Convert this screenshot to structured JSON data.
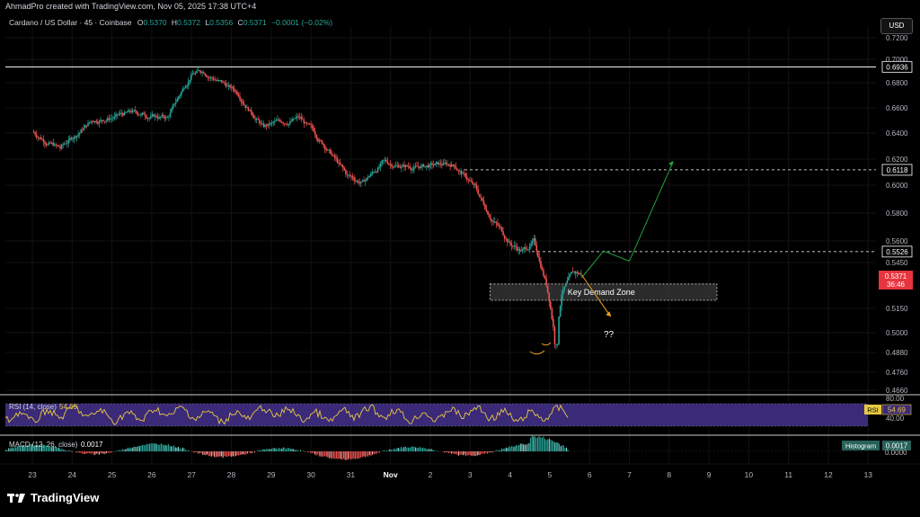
{
  "header": {
    "created_by": "AhmadPro created with TradingView.com, Nov 05, 2025 17:38 UTC+4"
  },
  "legend": {
    "symbol": "Cardano / US Dollar · 45 · Coinbase",
    "O_label": "O",
    "O": "0.5370",
    "H_label": "H",
    "H": "0.5372",
    "L_label": "L",
    "L": "0.5356",
    "C_label": "C",
    "C": "0.5371",
    "change": "−0.0001 (−0.02%)"
  },
  "currency_button": "USD",
  "price_axis": {
    "ticks": [
      "0.7200",
      "0.7000",
      "0.6800",
      "0.6600",
      "0.6400",
      "0.6200",
      "0.6000",
      "0.5800",
      "0.5600",
      "0.5450",
      "0.5150",
      "0.5000",
      "0.4880",
      "0.4760",
      "0.4660"
    ],
    "tags": [
      {
        "value": "0.6936",
        "color": "#ffffff"
      },
      {
        "value": "0.6118",
        "color": "#ffffff"
      },
      {
        "value": "0.5526",
        "color": "#ffffff"
      }
    ],
    "current_price": "0.5371",
    "countdown": "36:46"
  },
  "annotations": {
    "zone_label": "Key Demand Zone",
    "question": "??"
  },
  "rsi": {
    "label": "RSI (14, close)",
    "value": "54.69",
    "levels": [
      "80.00",
      "40.00"
    ]
  },
  "macd": {
    "label": "MACD (12, 26, close)",
    "value": "0.0017",
    "histogram_label": "Histogram",
    "zero": "0.0000"
  },
  "time_axis": [
    "23",
    "24",
    "25",
    "26",
    "27",
    "28",
    "29",
    "30",
    "31",
    "Nov",
    "2",
    "3",
    "4",
    "5",
    "6",
    "7",
    "8",
    "9",
    "10",
    "11",
    "12",
    "13"
  ],
  "footer": {
    "brand": "TradingView"
  },
  "colors": {
    "up": "#26a69a",
    "down": "#ef5350",
    "rsi_band": "#3b2a78",
    "rsi_line": "#e5c942",
    "projection": "#22a33a",
    "alt_path": "#f0a020"
  },
  "chart_data": {
    "type": "candlestick",
    "title": "Cardano / US Dollar · 45 · Coinbase",
    "ylim": [
      0.458,
      0.727
    ],
    "x_range_days": [
      "23",
      "13"
    ],
    "path_keypoints": [
      {
        "d": 0.0,
        "p": 0.641
      },
      {
        "d": 0.7,
        "p": 0.628
      },
      {
        "d": 1.5,
        "p": 0.65
      },
      {
        "d": 2.5,
        "p": 0.656
      },
      {
        "d": 3.4,
        "p": 0.652
      },
      {
        "d": 4.0,
        "p": 0.688
      },
      {
        "d": 4.3,
        "p": 0.69
      },
      {
        "d": 5.2,
        "p": 0.671
      },
      {
        "d": 5.8,
        "p": 0.645
      },
      {
        "d": 6.7,
        "p": 0.652
      },
      {
        "d": 7.4,
        "p": 0.629
      },
      {
        "d": 7.9,
        "p": 0.607
      },
      {
        "d": 8.3,
        "p": 0.602
      },
      {
        "d": 8.8,
        "p": 0.617
      },
      {
        "d": 9.6,
        "p": 0.614
      },
      {
        "d": 10.6,
        "p": 0.616
      },
      {
        "d": 11.1,
        "p": 0.599
      },
      {
        "d": 11.4,
        "p": 0.583
      },
      {
        "d": 11.7,
        "p": 0.571
      },
      {
        "d": 12.0,
        "p": 0.559
      },
      {
        "d": 12.3,
        "p": 0.553
      },
      {
        "d": 12.6,
        "p": 0.559
      },
      {
        "d": 12.9,
        "p": 0.533
      },
      {
        "d": 13.0,
        "p": 0.52
      },
      {
        "d": 13.15,
        "p": 0.495
      },
      {
        "d": 13.3,
        "p": 0.527
      },
      {
        "d": 13.6,
        "p": 0.537
      },
      {
        "d": 13.8,
        "p": 0.5371
      }
    ],
    "levels": [
      {
        "name": "0.6936",
        "value": 0.6936
      },
      {
        "name": "0.6118",
        "value": 0.6118
      },
      {
        "name": "0.5526",
        "value": 0.5526
      }
    ],
    "demand_zone": {
      "from_day": 11.5,
      "to_day": 17.2,
      "low": 0.5203,
      "high": 0.531
    },
    "projection_path": [
      {
        "d": 13.8,
        "p": 0.535
      },
      {
        "d": 14.35,
        "p": 0.553
      },
      {
        "d": 15.0,
        "p": 0.546
      },
      {
        "d": 16.1,
        "p": 0.618
      }
    ],
    "alt_path": [
      {
        "d": 13.8,
        "p": 0.537
      },
      {
        "d": 14.5,
        "p": 0.511
      }
    ]
  }
}
